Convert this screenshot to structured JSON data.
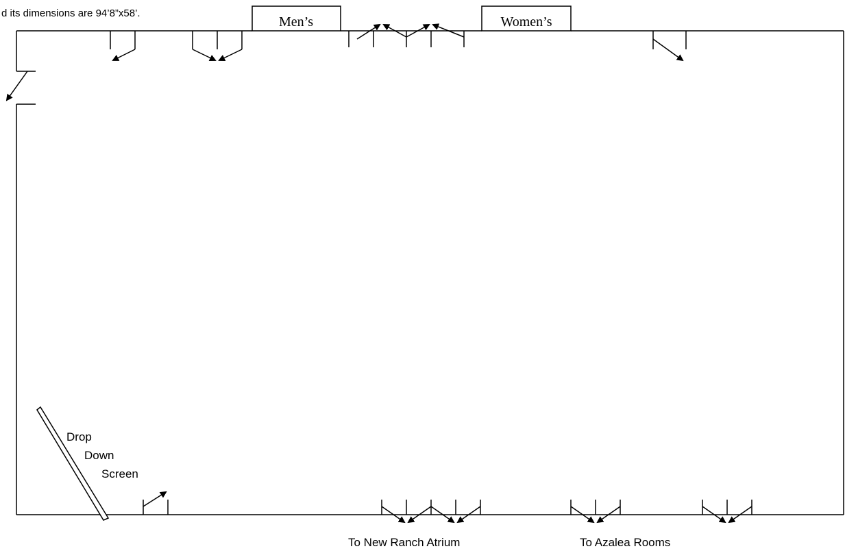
{
  "caption_fragment": "d its dimensions are 94’8”x58’.",
  "restrooms": {
    "mens": "Men’s",
    "womens": "Women’s"
  },
  "screen_label": [
    "Drop",
    "Down",
    "Screen"
  ],
  "exit_labels": {
    "atrium": "To New Ranch Atrium",
    "azalea": "To Azalea Rooms"
  },
  "colors": {
    "line": "#000000",
    "background": "#ffffff"
  }
}
